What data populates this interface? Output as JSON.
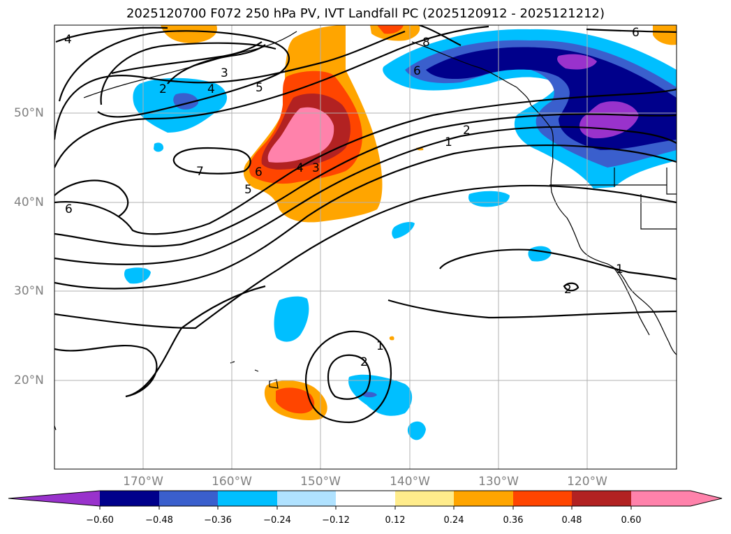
{
  "title": "2025120700 F072 250 hPa PV, IVT Landfall PC (2025120912 - 2025121212)",
  "lat_labels": [
    "50°N",
    "40°N",
    "30°N",
    "20°N"
  ],
  "lon_labels": [
    "170°W",
    "160°W",
    "150°W",
    "140°W",
    "130°W",
    "120°W"
  ],
  "contour_labels": [
    "4",
    "2",
    "3",
    "4",
    "5",
    "7",
    "6",
    "6",
    "4",
    "3",
    "5",
    "2",
    "1",
    "8",
    "6",
    "6",
    "1",
    "2",
    "1",
    "2"
  ],
  "colorbar": {
    "ticks": [
      "−0.60",
      "−0.48",
      "−0.36",
      "−0.24",
      "−0.12",
      "0.12",
      "0.24",
      "0.36",
      "0.48",
      "0.60"
    ],
    "colors": [
      "#9932cc",
      "#00008b",
      "#3a5fcd",
      "#00bfff",
      "#b0e2ff",
      "#ffffff",
      "#ffec8b",
      "#ffa500",
      "#ff4500",
      "#b22222",
      "#ff82ab"
    ]
  }
}
